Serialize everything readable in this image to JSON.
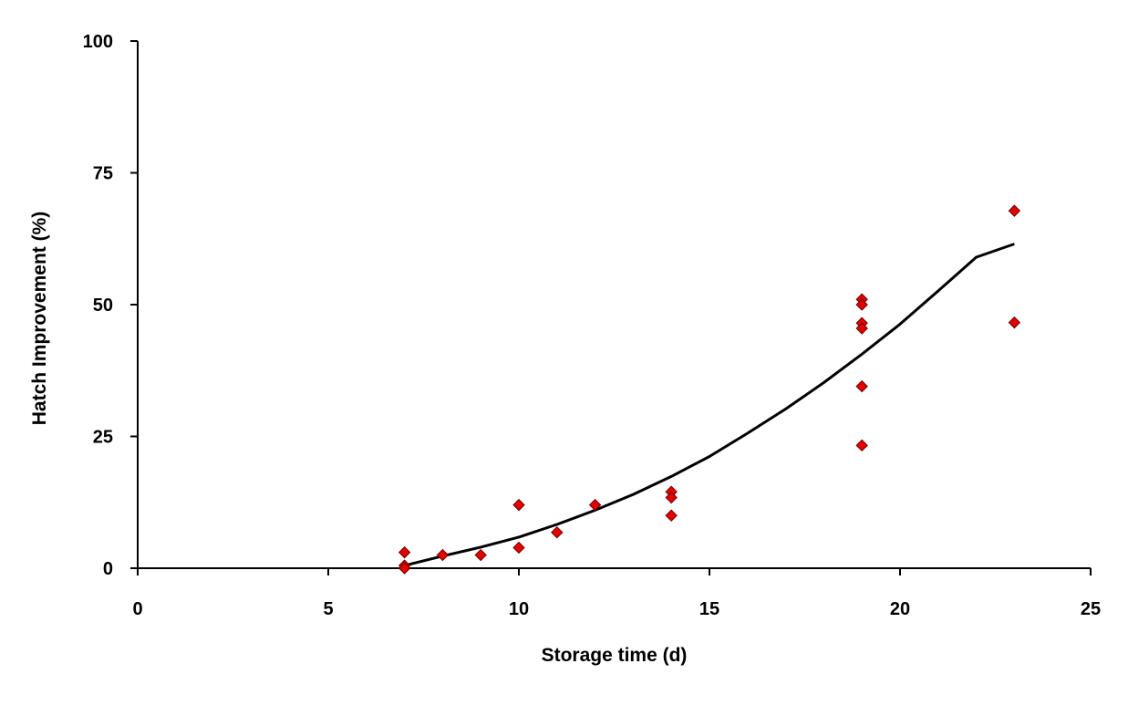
{
  "chart_data": {
    "type": "scatter",
    "xlabel": "Storage time (d)",
    "ylabel": "Hatch Improvement (%)",
    "xlim": [
      0,
      25
    ],
    "ylim": [
      0,
      100
    ],
    "xticks": [
      0,
      5,
      10,
      15,
      20,
      25
    ],
    "yticks": [
      0,
      25,
      50,
      75,
      100
    ],
    "grid": false,
    "legend": "none",
    "marker_color": "#e50000",
    "marker_edge": "#660000",
    "line_color": "#000000",
    "series": [
      {
        "kind": "points",
        "points": [
          {
            "x": 7,
            "y": 3
          },
          {
            "x": 7,
            "y": 0.5
          },
          {
            "x": 7,
            "y": 0
          },
          {
            "x": 8,
            "y": 2.5
          },
          {
            "x": 9,
            "y": 2.5
          },
          {
            "x": 10,
            "y": 12
          },
          {
            "x": 10,
            "y": 3.9
          },
          {
            "x": 11,
            "y": 6.8
          },
          {
            "x": 12,
            "y": 12
          },
          {
            "x": 14,
            "y": 14.5
          },
          {
            "x": 14,
            "y": 13.4
          },
          {
            "x": 14,
            "y": 10
          },
          {
            "x": 19,
            "y": 51
          },
          {
            "x": 19,
            "y": 50
          },
          {
            "x": 19,
            "y": 46.5
          },
          {
            "x": 19,
            "y": 45.5
          },
          {
            "x": 19,
            "y": 34.5
          },
          {
            "x": 19,
            "y": 23.3
          },
          {
            "x": 23,
            "y": 67.8
          },
          {
            "x": 23,
            "y": 46.6
          }
        ]
      },
      {
        "kind": "trend",
        "x": [
          7,
          8,
          9,
          10,
          11,
          12,
          13,
          14,
          15,
          16,
          17,
          18,
          19,
          20,
          21,
          22,
          23
        ],
        "y": [
          0.5,
          2.3,
          4.0,
          5.9,
          8.3,
          11.0,
          14.0,
          17.4,
          21.2,
          25.6,
          30.2,
          35.2,
          40.6,
          46.3,
          52.6,
          59.0,
          61.5
        ]
      }
    ]
  }
}
